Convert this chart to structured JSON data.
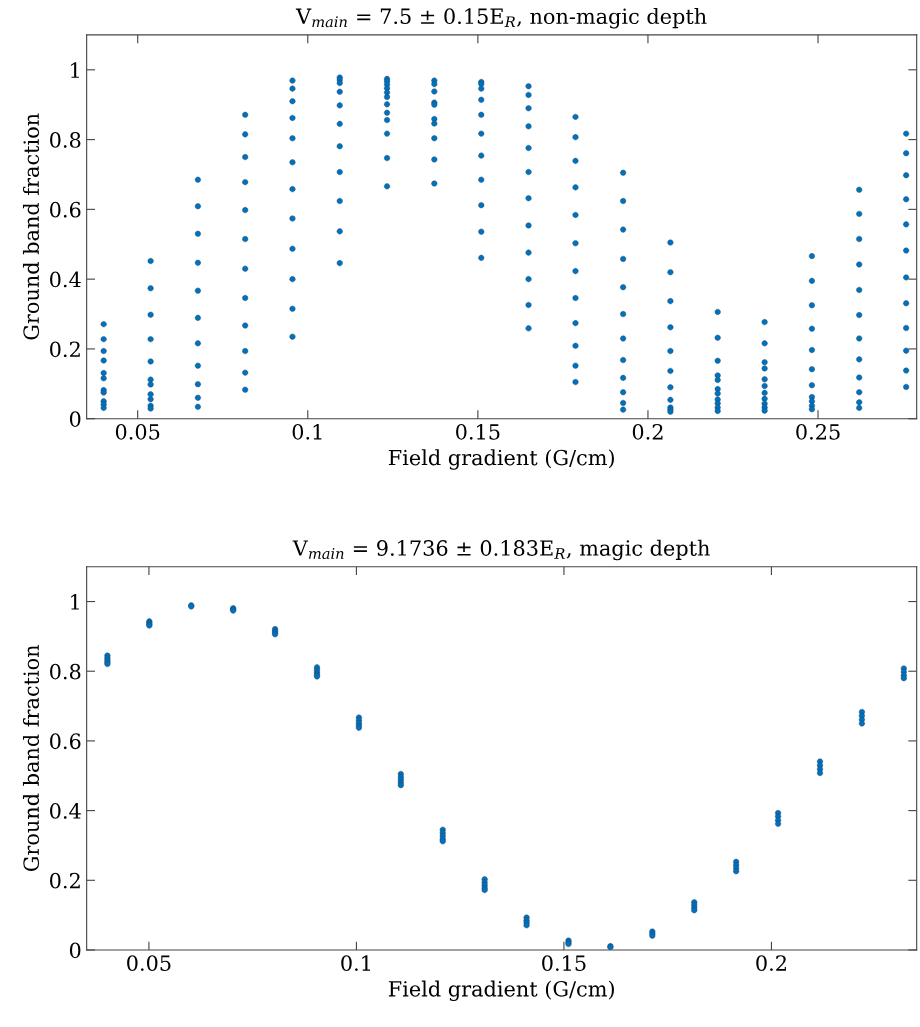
{
  "chart_data": [
    {
      "type": "scatter",
      "title": "V$_{main}$ = 7.5 ± 0.15E$_{R}$, non-magic depth",
      "xlabel": "Field gradient (G/cm)",
      "ylabel": "Ground band fraction",
      "xlim": [
        0.035,
        0.279
      ],
      "xticks": [
        0.05,
        0.1,
        0.15,
        0.2,
        0.25
      ],
      "ylim": [
        0,
        1.1
      ],
      "yticks": [
        0,
        0.2,
        0.4,
        0.6,
        0.8,
        1
      ],
      "grid": false,
      "marker": "circle",
      "series": [
        {
          "color": "#0072bd",
          "x": [
            0.04,
            0.04,
            0.04,
            0.04,
            0.04,
            0.04,
            0.04,
            0.04,
            0.04,
            0.04,
            0.04,
            0.0538,
            0.0538,
            0.0538,
            0.0538,
            0.0538,
            0.0538,
            0.0538,
            0.0538,
            0.0538,
            0.0538,
            0.0538,
            0.0677,
            0.0677,
            0.0677,
            0.0677,
            0.0677,
            0.0677,
            0.0677,
            0.0677,
            0.0677,
            0.0677,
            0.0677,
            0.0816,
            0.0816,
            0.0816,
            0.0816,
            0.0816,
            0.0816,
            0.0816,
            0.0816,
            0.0816,
            0.0816,
            0.0816,
            0.0816,
            0.0955,
            0.0955,
            0.0955,
            0.0955,
            0.0955,
            0.0955,
            0.0955,
            0.0955,
            0.0955,
            0.0955,
            0.0955,
            0.0955,
            0.1094,
            0.1094,
            0.1094,
            0.1094,
            0.1094,
            0.1094,
            0.1094,
            0.1094,
            0.1094,
            0.1094,
            0.1094,
            0.1233,
            0.1233,
            0.1233,
            0.1233,
            0.1233,
            0.1233,
            0.1233,
            0.1233,
            0.1233,
            0.1233,
            0.1233,
            0.1233,
            0.1372,
            0.1372,
            0.1372,
            0.1372,
            0.1372,
            0.1372,
            0.1372,
            0.1372,
            0.1372,
            0.1372,
            0.151,
            0.151,
            0.151,
            0.151,
            0.151,
            0.151,
            0.151,
            0.151,
            0.151,
            0.151,
            0.151,
            0.1649,
            0.1649,
            0.1649,
            0.1649,
            0.1649,
            0.1649,
            0.1649,
            0.1649,
            0.1649,
            0.1649,
            0.1649,
            0.1649,
            0.1787,
            0.1787,
            0.1787,
            0.1787,
            0.1787,
            0.1787,
            0.1787,
            0.1787,
            0.1787,
            0.1787,
            0.1787,
            0.1787,
            0.1927,
            0.1927,
            0.1927,
            0.1927,
            0.1927,
            0.1927,
            0.1927,
            0.1927,
            0.1927,
            0.1927,
            0.1927,
            0.1927,
            0.2066,
            0.2066,
            0.2066,
            0.2066,
            0.2066,
            0.2066,
            0.2066,
            0.2066,
            0.2066,
            0.2066,
            0.2066,
            0.2205,
            0.2205,
            0.2205,
            0.2205,
            0.2205,
            0.2205,
            0.2205,
            0.2205,
            0.2205,
            0.2205,
            0.2205,
            0.2343,
            0.2343,
            0.2343,
            0.2343,
            0.2343,
            0.2343,
            0.2343,
            0.2343,
            0.2343,
            0.2343,
            0.2343,
            0.2482,
            0.2482,
            0.2482,
            0.2482,
            0.2482,
            0.2482,
            0.2482,
            0.2482,
            0.2482,
            0.2482,
            0.2482,
            0.2621,
            0.2621,
            0.2621,
            0.2621,
            0.2621,
            0.2621,
            0.2621,
            0.2621,
            0.2621,
            0.2621,
            0.2621,
            0.2621,
            0.2759,
            0.2759,
            0.2759,
            0.2759,
            0.2759,
            0.2759,
            0.2759,
            0.2759,
            0.2759,
            0.2759,
            0.2759,
            0.2759
          ],
          "values": [
            0.271,
            0.228,
            0.194,
            0.167,
            0.131,
            0.116,
            0.082,
            0.075,
            0.05,
            0.041,
            0.031,
            0.452,
            0.374,
            0.298,
            0.228,
            0.164,
            0.112,
            0.098,
            0.07,
            0.056,
            0.037,
            0.029,
            0.685,
            0.609,
            0.53,
            0.447,
            0.367,
            0.289,
            0.216,
            0.152,
            0.099,
            0.06,
            0.034,
            0.871,
            0.815,
            0.75,
            0.678,
            0.598,
            0.515,
            0.43,
            0.346,
            0.267,
            0.194,
            0.132,
            0.083,
            0.969,
            0.946,
            0.91,
            0.862,
            0.804,
            0.735,
            0.658,
            0.574,
            0.487,
            0.4,
            0.315,
            0.235,
            0.978,
            0.971,
            0.962,
            0.937,
            0.898,
            0.845,
            0.781,
            0.707,
            0.624,
            0.537,
            0.446,
            0.974,
            0.967,
            0.958,
            0.947,
            0.935,
            0.922,
            0.901,
            0.877,
            0.856,
            0.817,
            0.747,
            0.666,
            0.969,
            0.959,
            0.938,
            0.906,
            0.9,
            0.859,
            0.846,
            0.804,
            0.743,
            0.674,
            0.965,
            0.959,
            0.946,
            0.914,
            0.871,
            0.817,
            0.754,
            0.685,
            0.612,
            0.536,
            0.461,
            0.953,
            0.928,
            0.89,
            0.838,
            0.776,
            0.707,
            0.632,
            0.554,
            0.476,
            0.4,
            0.326,
            0.259,
            0.865,
            0.807,
            0.739,
            0.663,
            0.584,
            0.503,
            0.423,
            0.346,
            0.274,
            0.209,
            0.152,
            0.105,
            0.705,
            0.624,
            0.542,
            0.458,
            0.377,
            0.3,
            0.23,
            0.168,
            0.117,
            0.076,
            0.045,
            0.026,
            0.505,
            0.42,
            0.337,
            0.262,
            0.194,
            0.137,
            0.09,
            0.054,
            0.032,
            0.026,
            0.02,
            0.306,
            0.232,
            0.166,
            0.124,
            0.111,
            0.085,
            0.072,
            0.055,
            0.044,
            0.032,
            0.022,
            0.277,
            0.216,
            0.162,
            0.144,
            0.113,
            0.094,
            0.074,
            0.057,
            0.043,
            0.032,
            0.023,
            0.466,
            0.395,
            0.325,
            0.258,
            0.197,
            0.142,
            0.096,
            0.062,
            0.05,
            0.037,
            0.027,
            0.656,
            0.587,
            0.515,
            0.442,
            0.369,
            0.297,
            0.23,
            0.17,
            0.118,
            0.076,
            0.047,
            0.031,
            0.817,
            0.761,
            0.698,
            0.629,
            0.557,
            0.482,
            0.405,
            0.331,
            0.26,
            0.195,
            0.138,
            0.091
          ]
        }
      ]
    },
    {
      "type": "scatter",
      "title": "V$_{main}$ = 9.1736 ± 0.183E$_{R}$, magic depth",
      "xlabel": "Field gradient (G/cm)",
      "ylabel": "Ground band fraction",
      "xlim": [
        0.035,
        0.235
      ],
      "xticks": [
        0.05,
        0.1,
        0.15,
        0.2
      ],
      "ylim": [
        0,
        1.1
      ],
      "yticks": [
        0,
        0.2,
        0.4,
        0.6,
        0.8,
        1
      ],
      "grid": false,
      "marker": "circle",
      "series": [
        {
          "color": "#0072bd",
          "x": [
            0.04,
            0.04,
            0.04,
            0.04,
            0.04,
            0.0501,
            0.0501,
            0.0501,
            0.0501,
            0.0602,
            0.0602,
            0.0703,
            0.0703,
            0.0703,
            0.0804,
            0.0804,
            0.0804,
            0.0804,
            0.0905,
            0.0905,
            0.0905,
            0.0905,
            0.0905,
            0.1006,
            0.1006,
            0.1006,
            0.1006,
            0.1006,
            0.1107,
            0.1107,
            0.1107,
            0.1107,
            0.1107,
            0.1208,
            0.1208,
            0.1208,
            0.1208,
            0.1208,
            0.1309,
            0.1309,
            0.1309,
            0.1309,
            0.1309,
            0.141,
            0.141,
            0.141,
            0.141,
            0.1511,
            0.1511,
            0.1511,
            0.1612,
            0.1612,
            0.1713,
            0.1713,
            0.1713,
            0.1814,
            0.1814,
            0.1814,
            0.1814,
            0.1915,
            0.1915,
            0.1915,
            0.1915,
            0.2016,
            0.2016,
            0.2016,
            0.2016,
            0.2117,
            0.2117,
            0.2117,
            0.2117,
            0.2218,
            0.2218,
            0.2218,
            0.2218,
            0.2319,
            0.2319,
            0.2319,
            0.2319
          ],
          "values": [
            0.845,
            0.838,
            0.832,
            0.826,
            0.821,
            0.943,
            0.939,
            0.935,
            0.931,
            0.989,
            0.986,
            0.981,
            0.977,
            0.974,
            0.921,
            0.916,
            0.911,
            0.906,
            0.811,
            0.804,
            0.797,
            0.79,
            0.785,
            0.667,
            0.659,
            0.651,
            0.644,
            0.638,
            0.505,
            0.496,
            0.488,
            0.48,
            0.473,
            0.345,
            0.336,
            0.327,
            0.318,
            0.312,
            0.203,
            0.194,
            0.186,
            0.178,
            0.172,
            0.093,
            0.085,
            0.078,
            0.071,
            0.027,
            0.022,
            0.017,
            0.011,
            0.008,
            0.053,
            0.047,
            0.041,
            0.137,
            0.129,
            0.121,
            0.114,
            0.253,
            0.244,
            0.235,
            0.226,
            0.393,
            0.383,
            0.372,
            0.362,
            0.541,
            0.53,
            0.519,
            0.508,
            0.683,
            0.672,
            0.661,
            0.65,
            0.808,
            0.798,
            0.788,
            0.78
          ]
        }
      ]
    }
  ]
}
